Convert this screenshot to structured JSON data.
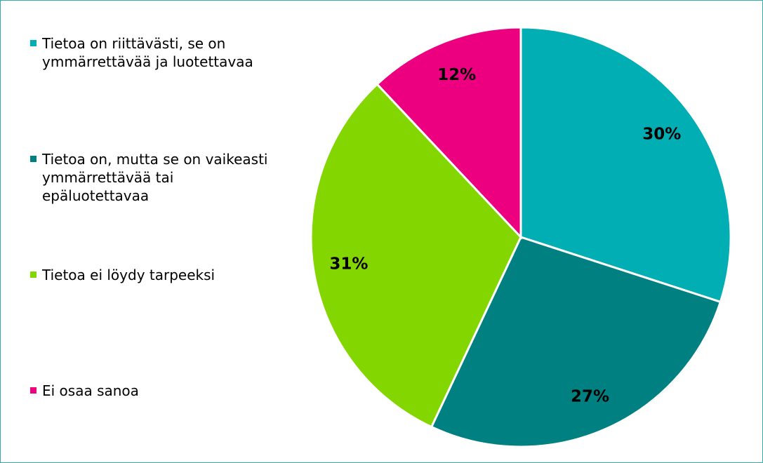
{
  "chart_data": {
    "type": "pie",
    "categories": [
      "Tietoa on riittävästi, se on ymmärrettävää ja luotettavaa",
      "Tietoa on, mutta se on vaikeasti ymmärrettävää tai epäluotettavaa",
      "Tietoa ei löydy tarpeeksi",
      "Ei osaa sanoa"
    ],
    "values": [
      30,
      27,
      31,
      12
    ],
    "value_labels": [
      "30%",
      "27%",
      "31%",
      "12%"
    ],
    "colors": [
      "#00aeb4",
      "#008080",
      "#84d600",
      "#ec0080"
    ],
    "legend": "left"
  }
}
